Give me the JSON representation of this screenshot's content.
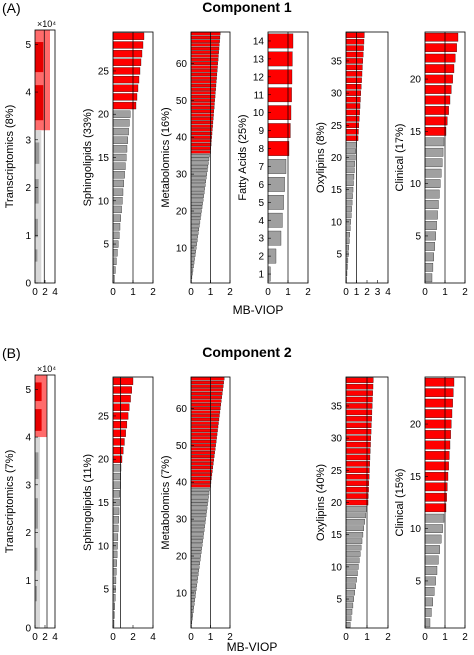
{
  "figure": {
    "panel_a_letter": "(A)",
    "panel_b_letter": "(B)",
    "panel_a_title": "Component 1",
    "panel_b_title": "Component 2",
    "xlabel": "MB-VIOP"
  },
  "colors": {
    "significant": "#ff0000",
    "nonsignificant": "#a0a0a0",
    "edge": "#000000"
  },
  "chart_data": [
    {
      "type": "bar",
      "panel": "A",
      "component": "Component 1",
      "block": "Transcriptomics",
      "ylabel": "Transcriptomics (8%)",
      "orientation": "horizontal",
      "n_features": 53000,
      "n_significant": 21000,
      "significant_max": 3.0,
      "multiplier": "×10⁴",
      "xlim": [
        0,
        4
      ],
      "xticks": [
        0,
        2,
        4
      ],
      "ylim": [
        0,
        53000
      ],
      "yticks": [
        0,
        10000,
        20000,
        30000,
        40000,
        50000
      ],
      "yticklabels": [
        "0",
        "1",
        "2",
        "3",
        "4",
        "5"
      ],
      "threshold": 1.85,
      "grid": false
    },
    {
      "type": "bar",
      "panel": "A",
      "component": "Component 1",
      "block": "Sphingolipids",
      "ylabel": "Sphingolipids (33%)",
      "orientation": "horizontal",
      "n_features": 29,
      "values": [
        0.07,
        0.12,
        0.17,
        0.22,
        0.26,
        0.31,
        0.35,
        0.39,
        0.43,
        0.47,
        0.5,
        0.54,
        0.58,
        0.62,
        0.66,
        0.7,
        0.74,
        0.78,
        0.82,
        0.86,
        1.15,
        1.2,
        1.25,
        1.3,
        1.35,
        1.4,
        1.45,
        1.5,
        1.55
      ],
      "significant": [
        false,
        false,
        false,
        false,
        false,
        false,
        false,
        false,
        false,
        false,
        false,
        false,
        false,
        false,
        false,
        false,
        false,
        false,
        false,
        false,
        true,
        true,
        true,
        true,
        true,
        true,
        true,
        true,
        true
      ],
      "xlim": [
        0,
        2
      ],
      "xticks": [
        0,
        1,
        2
      ],
      "yticks": [
        5,
        10,
        15,
        20,
        25
      ],
      "threshold": 1.0,
      "grid": false
    },
    {
      "type": "bar",
      "panel": "A",
      "component": "Component 1",
      "block": "Metabolomics",
      "ylabel": "Metabolomics (16%)",
      "orientation": "horizontal",
      "n_features": 68,
      "first_significant": 36,
      "sig_start": 1.0,
      "sig_end": 1.5,
      "nonsig_start": 0.02,
      "nonsig_end": 0.95,
      "xlim": [
        0,
        2
      ],
      "xticks": [
        0,
        1,
        2
      ],
      "yticks": [
        10,
        20,
        30,
        40,
        50,
        60
      ],
      "threshold": 1.0,
      "grid": false
    },
    {
      "type": "bar",
      "panel": "A",
      "component": "Component 1",
      "block": "Fatty Acids",
      "ylabel": "Fatty Acids (25%)",
      "orientation": "horizontal",
      "n_features": 14,
      "values": [
        0.12,
        0.4,
        0.65,
        0.72,
        0.78,
        0.83,
        0.9,
        1.05,
        1.12,
        1.15,
        1.18,
        1.2,
        1.22,
        1.25
      ],
      "significant": [
        false,
        false,
        false,
        false,
        false,
        false,
        false,
        true,
        true,
        true,
        true,
        true,
        true,
        true
      ],
      "xlim": [
        0,
        2
      ],
      "xticks": [
        0,
        1,
        2
      ],
      "yticks": [
        1,
        2,
        3,
        4,
        5,
        6,
        7,
        8,
        9,
        10,
        11,
        12,
        13,
        14
      ],
      "threshold": 1.0,
      "grid": false
    },
    {
      "type": "bar",
      "panel": "A",
      "component": "Component 1",
      "block": "Oxylipins",
      "ylabel": "Oxylipins (8%)",
      "orientation": "horizontal",
      "n_features": 39,
      "first_significant": 23,
      "sig_start": 1.15,
      "sig_end": 1.75,
      "nonsig_start": 0.05,
      "nonsig_end": 0.98,
      "xlim": [
        0,
        4
      ],
      "xticks": [
        0,
        1,
        2,
        3,
        4
      ],
      "yticks": [
        5,
        10,
        15,
        20,
        25,
        30,
        35
      ],
      "threshold": 1.0,
      "grid": false
    },
    {
      "type": "bar",
      "panel": "A",
      "component": "Component 1",
      "block": "Clinical",
      "ylabel": "Clinical (17%)",
      "orientation": "horizontal",
      "n_features": 24,
      "first_significant": 15,
      "sig_start": 1.05,
      "sig_end": 1.65,
      "nonsig_start": 0.35,
      "nonsig_end": 0.95,
      "xlim": [
        0,
        2
      ],
      "xticks": [
        0,
        1,
        2
      ],
      "yticks": [
        5,
        10,
        15,
        20
      ],
      "threshold": 1.0,
      "grid": false
    },
    {
      "type": "bar",
      "panel": "B",
      "component": "Component 2",
      "block": "Transcriptomics",
      "ylabel": "Transcriptomics (7%)",
      "orientation": "horizontal",
      "n_features": 53000,
      "n_significant": 13000,
      "significant_max": 2.4,
      "multiplier": "×10⁴",
      "xlim": [
        0,
        4
      ],
      "xticks": [
        0,
        2,
        4
      ],
      "ylim": [
        0,
        53000
      ],
      "yticks": [
        0,
        10000,
        20000,
        30000,
        40000,
        50000
      ],
      "yticklabels": [
        "0",
        "1",
        "2",
        "3",
        "4",
        "5"
      ],
      "threshold": 2.4,
      "grid": false
    },
    {
      "type": "bar",
      "panel": "B",
      "component": "Component 2",
      "block": "Sphingolipids",
      "ylabel": "Sphingolipids (11%)",
      "orientation": "horizontal",
      "n_features": 29,
      "first_significant": 20,
      "sig_start": 0.9,
      "sig_end": 2.0,
      "nonsig_start": 0.1,
      "nonsig_end": 0.8,
      "xlim": [
        0,
        4
      ],
      "xticks": [
        0,
        2,
        4
      ],
      "yticks": [
        5,
        10,
        15,
        20,
        25
      ],
      "threshold": 0.75,
      "grid": false
    },
    {
      "type": "bar",
      "panel": "B",
      "component": "Component 2",
      "block": "Metabolomics",
      "ylabel": "Metabolomics (7%)",
      "orientation": "horizontal",
      "n_features": 68,
      "first_significant": 39,
      "sig_start": 1.0,
      "sig_end": 1.7,
      "nonsig_start": 0.02,
      "nonsig_end": 0.95,
      "xlim": [
        0,
        2
      ],
      "xticks": [
        0,
        1,
        2
      ],
      "yticks": [
        10,
        20,
        30,
        40,
        50,
        60
      ],
      "threshold": 1.0,
      "grid": false
    },
    {
      "type": "bar",
      "panel": "B",
      "component": "Component 2",
      "block": "Oxylipins",
      "ylabel": "Oxylipins (40%)",
      "orientation": "horizontal",
      "n_features": 39,
      "first_significant": 20,
      "sig_start": 1.05,
      "sig_end": 1.3,
      "nonsig_start": 0.2,
      "nonsig_end": 0.98,
      "xlim": [
        0,
        2
      ],
      "xticks": [
        0,
        1,
        2
      ],
      "yticks": [
        5,
        10,
        15,
        20,
        25,
        30,
        35
      ],
      "threshold": 1.0,
      "grid": false
    },
    {
      "type": "bar",
      "panel": "B",
      "component": "Component 2",
      "block": "Clinical",
      "ylabel": "Clinical (15%)",
      "orientation": "horizontal",
      "n_features": 24,
      "first_significant": 12,
      "sig_start": 1.05,
      "sig_end": 1.45,
      "nonsig_start": 0.25,
      "nonsig_end": 0.95,
      "xlim": [
        0,
        2
      ],
      "xticks": [
        0,
        1,
        2
      ],
      "yticks": [
        5,
        10,
        15,
        20
      ],
      "threshold": 1.0,
      "grid": false
    }
  ]
}
